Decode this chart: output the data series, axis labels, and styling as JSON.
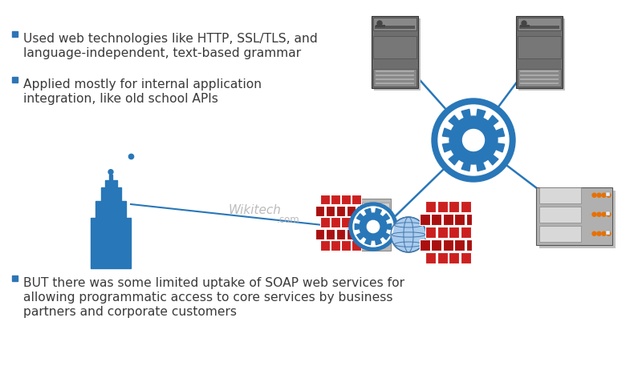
{
  "background_color": "#ffffff",
  "bullet_color": "#2e75b6",
  "bullet1_line1": "Used web technologies like HTTP, SSL/TLS, and",
  "bullet1_line2": "language-independent, text-based grammar",
  "bullet2_line1": "Applied mostly for internal application",
  "bullet2_line2": "integration, like old school APIs",
  "bullet3_line1": "BUT there was some limited uptake of SOAP web services for",
  "bullet3_line2": "allowing programmatic access to core services by business",
  "bullet3_line3": "partners and corporate customers",
  "watermark": "Wikitech",
  "watermark2": ".com",
  "bullet_square_color": "#2e75b6",
  "line_color": "#2877b8",
  "gear_color": "#2877b8",
  "building_color": "#2877b8",
  "text_color": "#3a3a3a",
  "font_size_bullet": 11.2,
  "font_size_watermark": 11
}
